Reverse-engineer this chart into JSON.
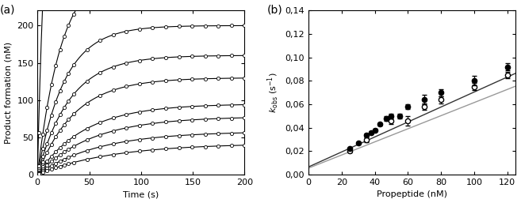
{
  "panel_a": {
    "xlabel": "Time (s)",
    "ylabel": "Product formation (nM)",
    "xlim": [
      0,
      200
    ],
    "ylim": [
      0,
      220
    ],
    "yticks": [
      0,
      50,
      100,
      150,
      200
    ],
    "xticks": [
      0,
      50,
      100,
      150,
      200
    ],
    "curves": [
      {
        "A": 500.0,
        "k": 0.12
      },
      {
        "A": 280.0,
        "k": 0.042
      },
      {
        "A": 200.0,
        "k": 0.038
      },
      {
        "A": 160.0,
        "k": 0.032
      },
      {
        "A": 130.0,
        "k": 0.028
      },
      {
        "A": 95.0,
        "k": 0.022
      },
      {
        "A": 78.0,
        "k": 0.019
      },
      {
        "A": 58.0,
        "k": 0.017
      },
      {
        "A": 42.0,
        "k": 0.014
      }
    ],
    "n_scatter_pts": 22
  },
  "panel_b": {
    "xlabel": "Propeptide (nM)",
    "xlim": [
      0,
      125
    ],
    "ylim": [
      0.0,
      0.14
    ],
    "yticks": [
      0.0,
      0.02,
      0.04,
      0.06,
      0.08,
      0.1,
      0.12,
      0.14
    ],
    "xticks": [
      0,
      20,
      40,
      60,
      80,
      100,
      120
    ],
    "filled_dots": {
      "x": [
        25,
        30,
        35,
        38,
        40,
        43,
        47,
        50,
        55,
        60,
        70,
        80,
        100,
        120
      ],
      "y": [
        0.022,
        0.027,
        0.034,
        0.036,
        0.038,
        0.043,
        0.048,
        0.05,
        0.05,
        0.058,
        0.064,
        0.07,
        0.08,
        0.092
      ],
      "yerr": [
        0.001,
        0.001,
        0.001,
        0.001,
        0.001,
        0.001,
        0.002,
        0.002,
        0.002,
        0.002,
        0.004,
        0.003,
        0.004,
        0.003
      ],
      "line_slope": 0.00064,
      "line_intercept": 0.0065
    },
    "open_dots": {
      "x": [
        25,
        35,
        50,
        60,
        70,
        80,
        100,
        120
      ],
      "y": [
        0.02,
        0.03,
        0.046,
        0.046,
        0.058,
        0.064,
        0.075,
        0.085
      ],
      "yerr": [
        0.001,
        0.002,
        0.003,
        0.004,
        0.003,
        0.003,
        0.003,
        0.003
      ],
      "line_slope": 0.00056,
      "line_intercept": 0.0055
    }
  }
}
